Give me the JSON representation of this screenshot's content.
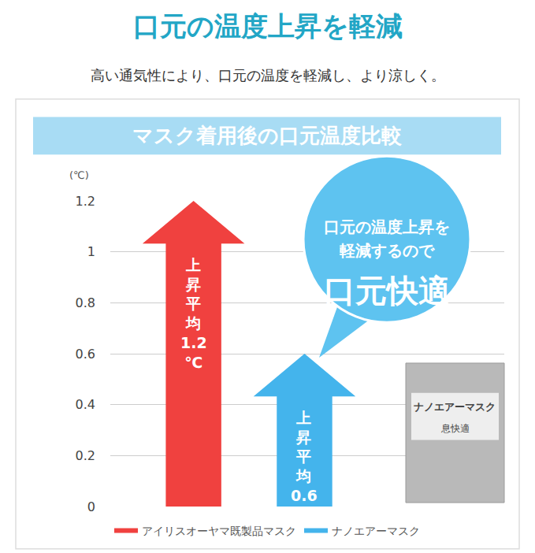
{
  "chart_data": {
    "type": "bar",
    "title": "口元の温度上昇を軽減",
    "subtitle": "高い通気性により、口元の温度を軽減し、より涼しく。",
    "chart_heading": "マスク着用後の口元温度比較",
    "ylabel": "(℃)",
    "categories": [
      null,
      null
    ],
    "series": [
      {
        "name": "アイリスオーヤマ既製品マスク",
        "color": "#f0413f",
        "values": [
          1.2,
          null
        ],
        "value_labels": [
          "上昇平均1.2℃",
          null
        ]
      },
      {
        "name": "ナノエアーマスク",
        "color": "#44b4ec",
        "values": [
          null,
          0.6
        ],
        "value_labels": [
          null,
          "上昇平均0.6℃"
        ]
      }
    ],
    "ylim": [
      0,
      1.2
    ],
    "yticks": [
      0,
      0.2,
      0.4,
      0.6,
      0.8,
      1,
      1.2
    ],
    "grid": true,
    "legend": "bottom",
    "data_labels": true,
    "marker": "arrow",
    "annotations": {
      "callout_lines": [
        "口元の温度上昇を",
        "軽減するので"
      ],
      "callout_emphasis": "口元快適",
      "package_name": "ナノエアーマスク",
      "package_tagline": "息快適"
    }
  }
}
